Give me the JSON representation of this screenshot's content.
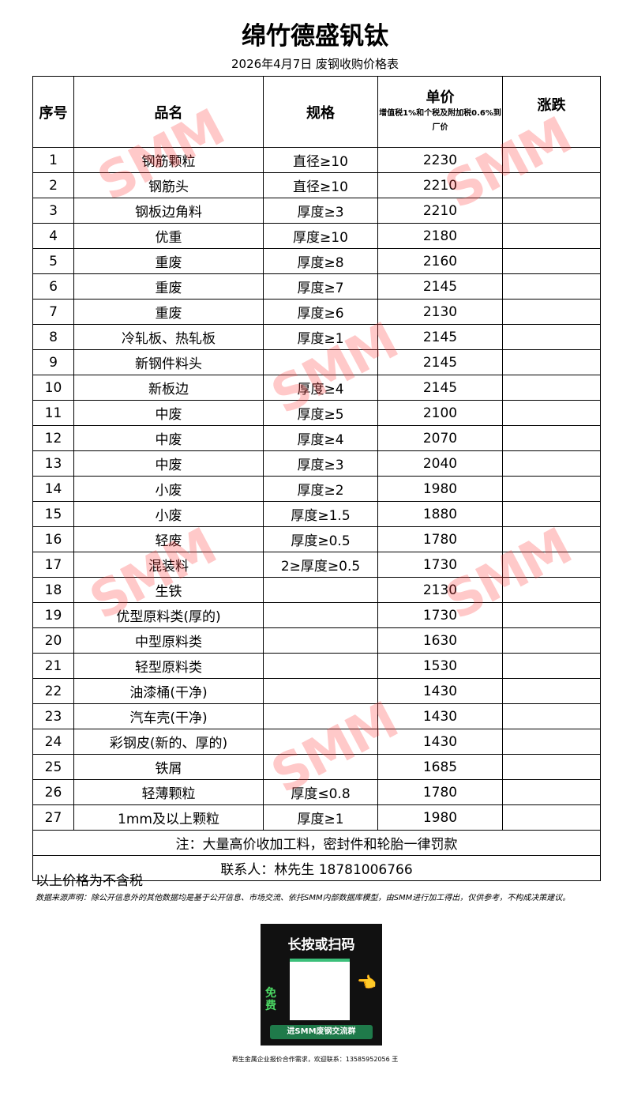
{
  "title": "绵竹德盛钒钛",
  "subtitle": "2026年4月7日 废钢收购价格表",
  "watermark": "SMM",
  "headers": {
    "no": "序号",
    "name": "品名",
    "spec": "规格",
    "price": "单价",
    "price_note": "增值税1%和个税及附加税0.6%到厂价",
    "change": "涨跌"
  },
  "rows": [
    {
      "no": "1",
      "name": "钢筋颗粒",
      "spec": "直径≥10",
      "price": "2230",
      "change": ""
    },
    {
      "no": "2",
      "name": "钢筋头",
      "spec": "直径≥10",
      "price": "2210",
      "change": ""
    },
    {
      "no": "3",
      "name": "钢板边角料",
      "spec": "厚度≥3",
      "price": "2210",
      "change": ""
    },
    {
      "no": "4",
      "name": "优重",
      "spec": "厚度≥10",
      "price": "2180",
      "change": ""
    },
    {
      "no": "5",
      "name": "重废",
      "spec": "厚度≥8",
      "price": "2160",
      "change": ""
    },
    {
      "no": "6",
      "name": "重废",
      "spec": "厚度≥7",
      "price": "2145",
      "change": ""
    },
    {
      "no": "7",
      "name": "重废",
      "spec": "厚度≥6",
      "price": "2130",
      "change": ""
    },
    {
      "no": "8",
      "name": "冷轧板、热轧板",
      "spec": "厚度≥1",
      "price": "2145",
      "change": ""
    },
    {
      "no": "9",
      "name": "新钢件料头",
      "spec": "",
      "price": "2145",
      "change": ""
    },
    {
      "no": "10",
      "name": "新板边",
      "spec": "厚度≥4",
      "price": "2145",
      "change": ""
    },
    {
      "no": "11",
      "name": "中废",
      "spec": "厚度≥5",
      "price": "2100",
      "change": ""
    },
    {
      "no": "12",
      "name": "中废",
      "spec": "厚度≥4",
      "price": "2070",
      "change": ""
    },
    {
      "no": "13",
      "name": "中废",
      "spec": "厚度≥3",
      "price": "2040",
      "change": ""
    },
    {
      "no": "14",
      "name": "小废",
      "spec": "厚度≥2",
      "price": "1980",
      "change": ""
    },
    {
      "no": "15",
      "name": "小废",
      "spec": "厚度≥1.5",
      "price": "1880",
      "change": ""
    },
    {
      "no": "16",
      "name": "轻废",
      "spec": "厚度≥0.5",
      "price": "1780",
      "change": ""
    },
    {
      "no": "17",
      "name": "混装料",
      "spec": "2≥厚度≥0.5",
      "price": "1730",
      "change": ""
    },
    {
      "no": "18",
      "name": "生铁",
      "spec": "",
      "price": "2130",
      "change": ""
    },
    {
      "no": "19",
      "name": "优型原料类(厚的)",
      "spec": "",
      "price": "1730",
      "change": ""
    },
    {
      "no": "20",
      "name": "中型原料类",
      "spec": "",
      "price": "1630",
      "change": ""
    },
    {
      "no": "21",
      "name": "轻型原料类",
      "spec": "",
      "price": "1530",
      "change": ""
    },
    {
      "no": "22",
      "name": "油漆桶(干净)",
      "spec": "",
      "price": "1430",
      "change": ""
    },
    {
      "no": "23",
      "name": "汽车壳(干净)",
      "spec": "",
      "price": "1430",
      "change": ""
    },
    {
      "no": "24",
      "name": "彩钢皮(新的、厚的)",
      "spec": "",
      "price": "1430",
      "change": ""
    },
    {
      "no": "25",
      "name": "铁屑",
      "spec": "",
      "price": "1685",
      "change": ""
    },
    {
      "no": "26",
      "name": "轻薄颗粒",
      "spec": "厚度≤0.8",
      "price": "1780",
      "change": ""
    },
    {
      "no": "27",
      "name": "1mm及以上颗粒",
      "spec": "厚度≥1",
      "price": "1980",
      "change": ""
    }
  ],
  "note": "注：大量高价收加工料，密封件和轮胎一律罚款",
  "contact": "联系人：林先生 18781006766",
  "tax_note": "以上价格为不含税",
  "disclaimer": "数据来源声明：除公开信息外的其他数据均是基于公开信息、市场交流、依托SMM内部数据库模型，由SMM进行加工得出，仅供参考，不构成决策建议。",
  "qr": {
    "heading": "长按或扫码",
    "free": "免费",
    "button": "进SMM废钢交流群"
  },
  "footer": "再生金属企业报价合作需求，欢迎联系：13585952056 王"
}
